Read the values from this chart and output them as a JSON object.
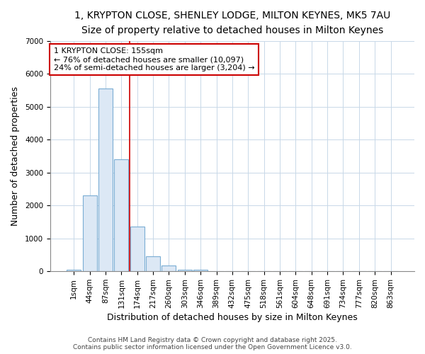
{
  "title": "1, KRYPTON CLOSE, SHENLEY LODGE, MILTON KEYNES, MK5 7AU",
  "subtitle": "Size of property relative to detached houses in Milton Keynes",
  "xlabel": "Distribution of detached houses by size in Milton Keynes",
  "ylabel": "Number of detached properties",
  "footer_line1": "Contains HM Land Registry data © Crown copyright and database right 2025.",
  "footer_line2": "Contains public sector information licensed under the Open Government Licence v3.0.",
  "annotation_line1": "1 KRYPTON CLOSE: 155sqm",
  "annotation_line2": "← 76% of detached houses are smaller (10,097)",
  "annotation_line3": "24% of semi-detached houses are larger (3,204) →",
  "bar_labels": [
    "1sqm",
    "44sqm",
    "87sqm",
    "131sqm",
    "174sqm",
    "217sqm",
    "260sqm",
    "303sqm",
    "346sqm",
    "389sqm",
    "432sqm",
    "475sqm",
    "518sqm",
    "561sqm",
    "604sqm",
    "648sqm",
    "691sqm",
    "734sqm",
    "777sqm",
    "820sqm",
    "863sqm"
  ],
  "bar_values": [
    50,
    2300,
    5550,
    3400,
    1350,
    450,
    175,
    50,
    50,
    0,
    0,
    0,
    0,
    0,
    0,
    0,
    0,
    0,
    0,
    0,
    0
  ],
  "bar_color": "#dce8f5",
  "bar_edgecolor": "#7aadd4",
  "vline_color": "#cc0000",
  "vline_x": 3.5,
  "ylim": [
    0,
    7000
  ],
  "yticks": [
    0,
    1000,
    2000,
    3000,
    4000,
    5000,
    6000,
    7000
  ],
  "grid_color": "#c8d8e8",
  "background_color": "#ffffff",
  "title_fontsize": 10,
  "subtitle_fontsize": 9,
  "axis_label_fontsize": 9,
  "tick_fontsize": 7.5,
  "footer_fontsize": 6.5,
  "annotation_fontsize": 8
}
